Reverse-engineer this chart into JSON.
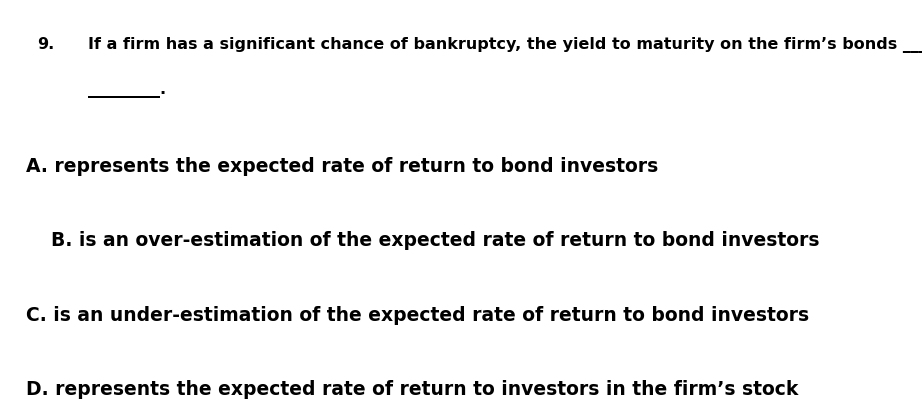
{
  "background_color": "#ffffff",
  "question_number": "9.",
  "question_text": "If a firm has a significant chance of bankruptcy, the yield to maturity on the firm’s bonds ___",
  "question_line2": "_________.",
  "options": [
    "A. represents the expected rate of return to bond investors",
    "B. is an over-estimation of the expected rate of return to bond investors",
    "C. is an under-estimation of the expected rate of return to bond investors",
    "D. represents the expected rate of return to investors in the firm’s stock"
  ],
  "question_fontsize": 11.5,
  "option_fontsize": 13.5,
  "text_color": "#000000",
  "fig_width": 9.22,
  "fig_height": 4.13,
  "dpi": 100
}
